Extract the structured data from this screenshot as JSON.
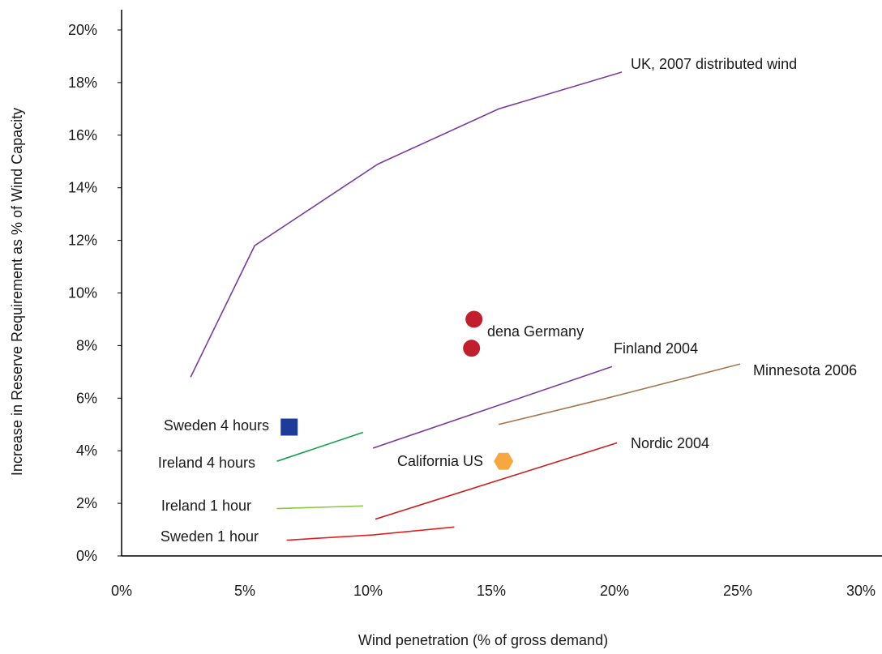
{
  "chart_data": {
    "type": "scatter",
    "xlabel": "Wind penetration (% of gross demand)",
    "ylabel": "Increase in Reserve Requirement as % of Wind Capacity",
    "xlim": [
      0,
      30
    ],
    "ylim": [
      0,
      20
    ],
    "x_ticks": [
      0,
      5,
      10,
      15,
      20,
      25,
      30
    ],
    "x_tick_labels": [
      "0%",
      "5%",
      "10%",
      "15%",
      "20%",
      "25%",
      "30%"
    ],
    "y_ticks": [
      0,
      2,
      4,
      6,
      8,
      10,
      12,
      14,
      16,
      18,
      20
    ],
    "y_tick_labels": [
      "0%",
      "2%",
      "4%",
      "6%",
      "8%",
      "10%",
      "12%",
      "14%",
      "16%",
      "18%",
      "20%"
    ],
    "grid": false,
    "legend": "none",
    "series": [
      {
        "name": "UK, 2007 distributed wind",
        "kind": "line",
        "color": "#7a3d9e",
        "x": [
          2.8,
          5.4,
          10.4,
          15.3,
          20.3
        ],
        "y": [
          6.8,
          11.8,
          14.9,
          17.0,
          18.4
        ]
      },
      {
        "name": "Finland 2004",
        "kind": "line",
        "color": "#7a3d9e",
        "x": [
          10.2,
          19.9
        ],
        "y": [
          4.1,
          7.2
        ]
      },
      {
        "name": "Minnesota 2006",
        "kind": "line",
        "color": "#a0774f",
        "x": [
          15.3,
          19.7,
          25.1
        ],
        "y": [
          5.0,
          6.0,
          7.3
        ]
      },
      {
        "name": "Nordic 2004",
        "kind": "line",
        "color": "#c81e1e",
        "x": [
          10.3,
          20.1
        ],
        "y": [
          1.4,
          4.3
        ]
      },
      {
        "name": "Ireland 4 hours",
        "kind": "line",
        "color": "#17a04a",
        "x": [
          6.3,
          9.8
        ],
        "y": [
          3.6,
          4.7
        ]
      },
      {
        "name": "Ireland 1 hour",
        "kind": "line",
        "color": "#8cc63f",
        "x": [
          6.3,
          9.8
        ],
        "y": [
          1.8,
          1.9
        ]
      },
      {
        "name": "Sweden 1 hour",
        "kind": "line",
        "color": "#e02020",
        "x": [
          6.7,
          10.2,
          13.5
        ],
        "y": [
          0.6,
          0.8,
          1.1
        ]
      },
      {
        "name": "dena Germany",
        "kind": "circle",
        "color": "#c0202e",
        "x": [
          14.2,
          14.3
        ],
        "y": [
          7.9,
          9.0
        ]
      },
      {
        "name": "Sweden 4 hours",
        "kind": "square",
        "color": "#1f3b99",
        "x": [
          6.8
        ],
        "y": [
          4.9
        ]
      },
      {
        "name": "California US",
        "kind": "hexagon",
        "color": "#f6a742",
        "x": [
          15.5
        ],
        "y": [
          3.6
        ]
      }
    ]
  }
}
